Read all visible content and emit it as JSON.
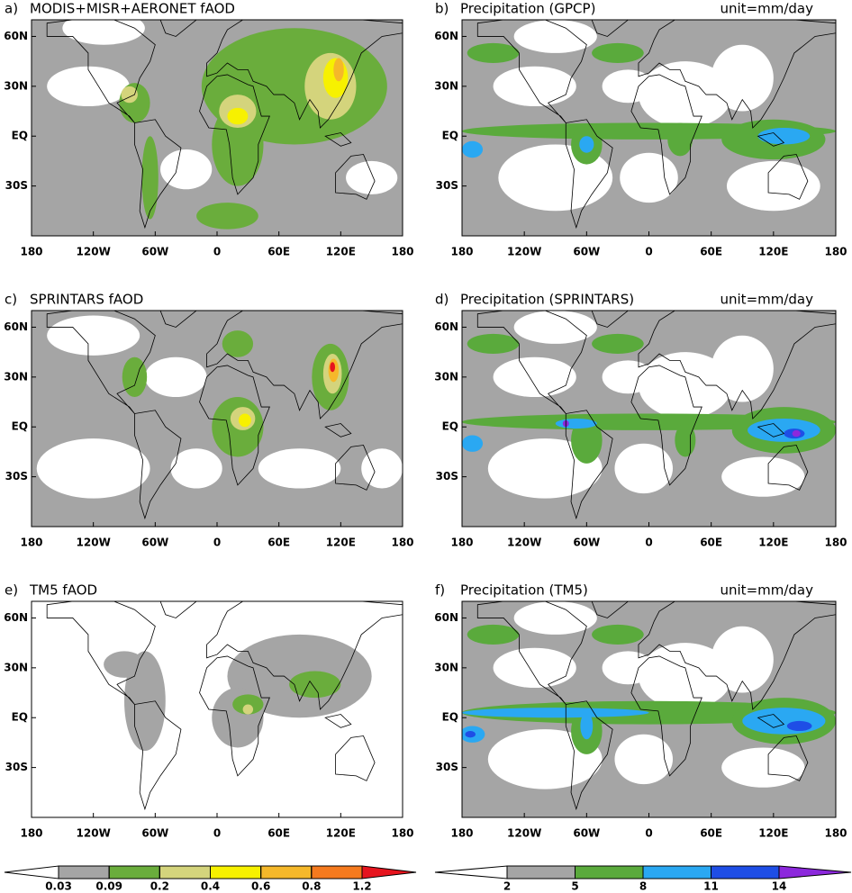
{
  "panels": [
    {
      "label": "a)",
      "title": "MODIS+MISR+AERONET fAOD"
    },
    {
      "label": "b)",
      "title": "Precipitation (GPCP)",
      "unit": "unit=mm/day"
    },
    {
      "label": "c)",
      "title": "SPRINTARS fAOD"
    },
    {
      "label": "d)",
      "title": "Precipitation (SPRINTARS)",
      "unit": "unit=mm/day"
    },
    {
      "label": "e)",
      "title": "TM5 fAOD"
    },
    {
      "label": "f)",
      "title": "Precipitation (TM5)",
      "unit": "unit=mm/day"
    }
  ],
  "x_tick_labels": [
    "180",
    "120W",
    "60W",
    "0",
    "60E",
    "120E",
    "180"
  ],
  "y_tick_labels": [
    "60N",
    "30N",
    "EQ",
    "30S"
  ],
  "colorbars": [
    {
      "levels": [
        0.03,
        0.09,
        0.2,
        0.4,
        0.6,
        0.8,
        1.2
      ],
      "colors": [
        "#ffffff",
        "#a5a5a5",
        "#6aad3c",
        "#d4d47c",
        "#f7f100",
        "#f5b82a",
        "#f57a1e",
        "#e6141e"
      ]
    },
    {
      "levels": [
        2,
        5,
        8,
        11,
        14
      ],
      "colors": [
        "#ffffff",
        "#a5a5a5",
        "#5aaa3c",
        "#2aa8f2",
        "#1e4ee6",
        "#8c28dc"
      ]
    }
  ]
}
